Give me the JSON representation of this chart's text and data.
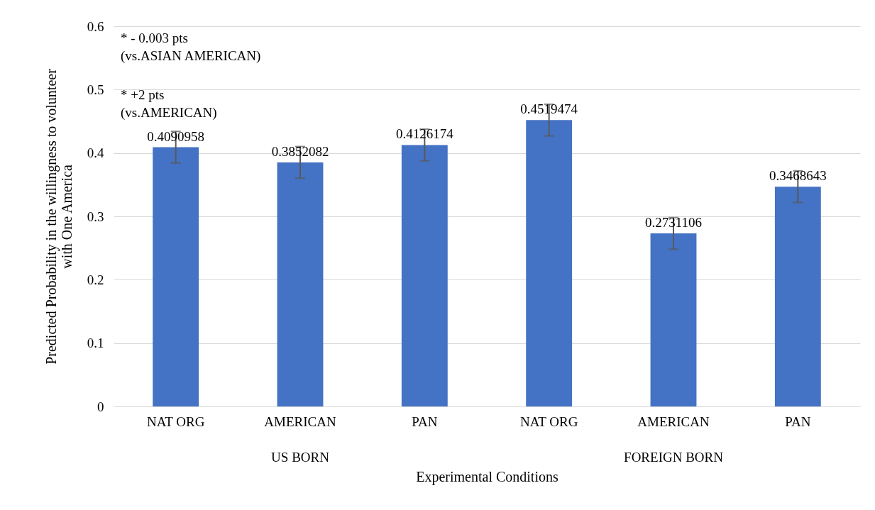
{
  "chart_data": {
    "type": "bar",
    "categories": [
      "NAT ORG",
      "AMERICAN",
      "PAN",
      "NAT ORG",
      "AMERICAN",
      "PAN"
    ],
    "values": [
      0.4090958,
      0.3852082,
      0.4126174,
      0.4519474,
      0.2731106,
      0.3468643
    ],
    "errors": [
      0.025,
      0.025,
      0.025,
      0.025,
      0.025,
      0.025
    ],
    "color": "#4472c4",
    "data_labels": true,
    "xlabel": "Experimental Conditions",
    "ylabel": "Predicted Probability in the willingness to volunteer\nwith One America",
    "ylim": [
      0,
      0.6
    ],
    "yticks": [
      0,
      0.1,
      0.2,
      0.3,
      0.4,
      0.5,
      0.6
    ],
    "grid": "y",
    "annotations": [
      "* - 0.003 pts\n(vs.ASIAN AMERICAN)",
      "* +2 pts\n(vs.AMERICAN)",
      "US BORN",
      "FOREIGN BORN"
    ]
  }
}
